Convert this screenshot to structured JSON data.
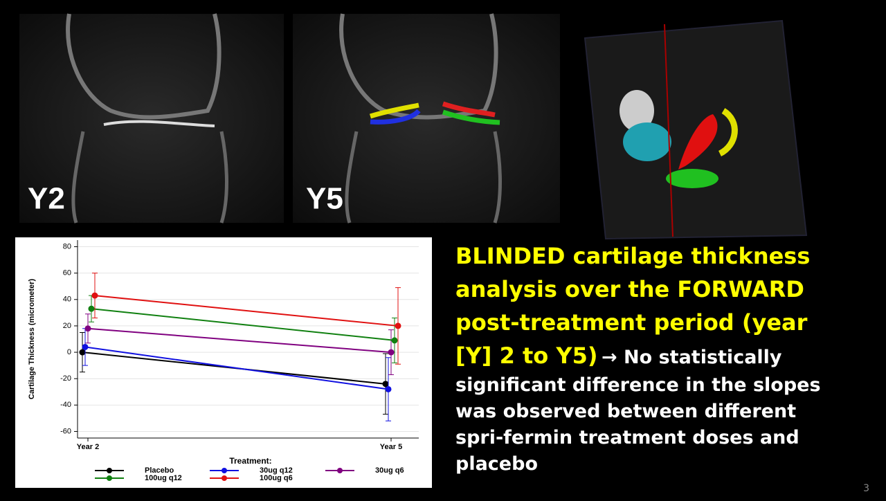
{
  "slide": {
    "image_labels": [
      "Y2",
      "Y5"
    ],
    "heading": "BLINDED cartilage thickness analysis over the FORWARD post-treatment period (year [Y] 2 to Y5)",
    "body": "→ No statistically significant difference in the slopes was observed between different spri-fermin treatment doses and placebo",
    "page_number": "3"
  },
  "chart_data": {
    "type": "line",
    "y_label": "Cartilage Thickness (micrometer)",
    "legend_title": "Treatment:",
    "categories": [
      "Year 2",
      "Year 5"
    ],
    "series": [
      {
        "name": "Placebo",
        "color": "#000000",
        "values": [
          0,
          -24
        ],
        "errors": [
          15,
          23
        ]
      },
      {
        "name": "30ug q12",
        "color": "#1010e0",
        "values": [
          4,
          -28
        ],
        "errors": [
          14,
          24
        ]
      },
      {
        "name": "30ug q6",
        "color": "#800080",
        "values": [
          18,
          0
        ],
        "errors": [
          11,
          17
        ]
      },
      {
        "name": "100ug q12",
        "color": "#108010",
        "values": [
          33,
          9
        ],
        "errors": [
          10,
          17
        ]
      },
      {
        "name": "100ug q6",
        "color": "#e01010",
        "values": [
          43,
          20
        ],
        "errors": [
          17,
          29
        ]
      }
    ],
    "ylim": [
      -65,
      85
    ],
    "yticks": [
      -60,
      -40,
      -20,
      0,
      20,
      40,
      60,
      80
    ],
    "grid": true
  }
}
